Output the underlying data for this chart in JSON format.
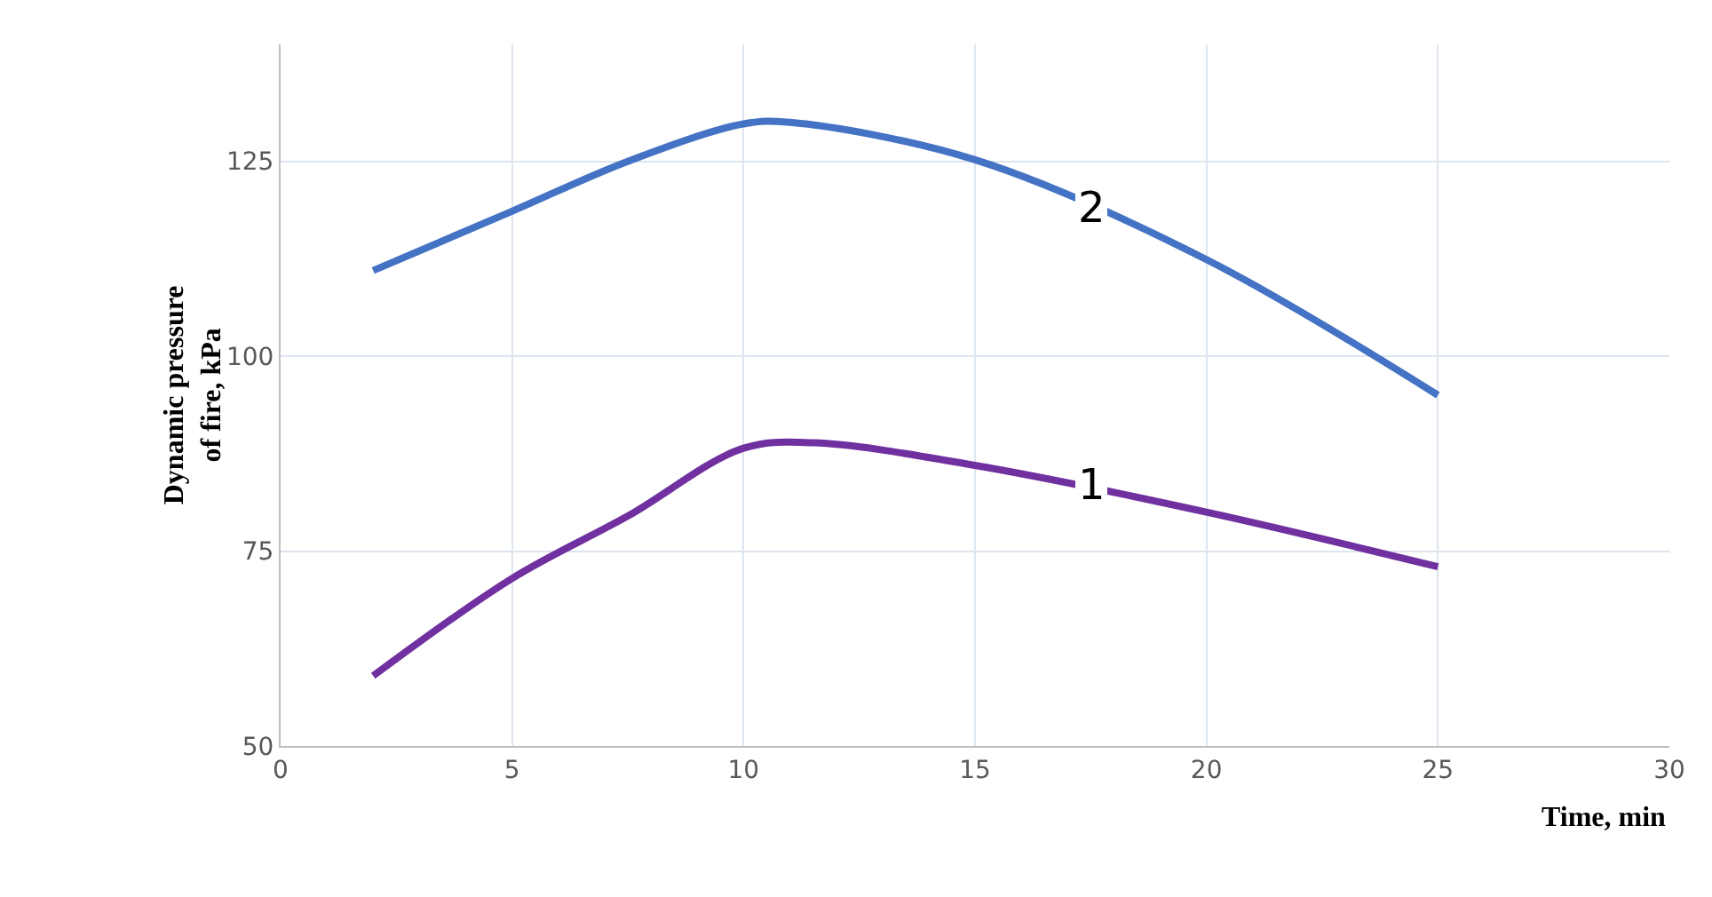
{
  "chart_data": {
    "type": "line",
    "xlabel": "Time, min",
    "ylabel": "Dynamic pressure\nof fire, kPa",
    "xlim": [
      0,
      30
    ],
    "xticks": [
      0,
      5,
      10,
      15,
      20,
      25,
      30
    ],
    "ylim": [
      50,
      140
    ],
    "yticks": [
      50,
      75,
      100,
      125
    ],
    "grid": true,
    "legend": false,
    "marker": "none",
    "line_style": "solid",
    "series": [
      {
        "color": "#7030a0",
        "x": [
          2,
          5,
          7.5,
          10,
          11.5,
          15,
          20,
          25
        ],
        "values": [
          59,
          71.5,
          79.5,
          88.2,
          88.9,
          86,
          80,
          73
        ]
      },
      {
        "color": "#4472c4",
        "x": [
          2,
          5,
          7.5,
          10,
          11,
          15,
          20,
          25
        ],
        "values": [
          111,
          118.6,
          125,
          129.8,
          130,
          125.2,
          112.4,
          95
        ]
      }
    ],
    "annotations": [
      {
        "text": "1",
        "x": 17.5,
        "y": 83.4
      },
      {
        "text": "2",
        "x": 17.5,
        "y": 119
      }
    ]
  }
}
